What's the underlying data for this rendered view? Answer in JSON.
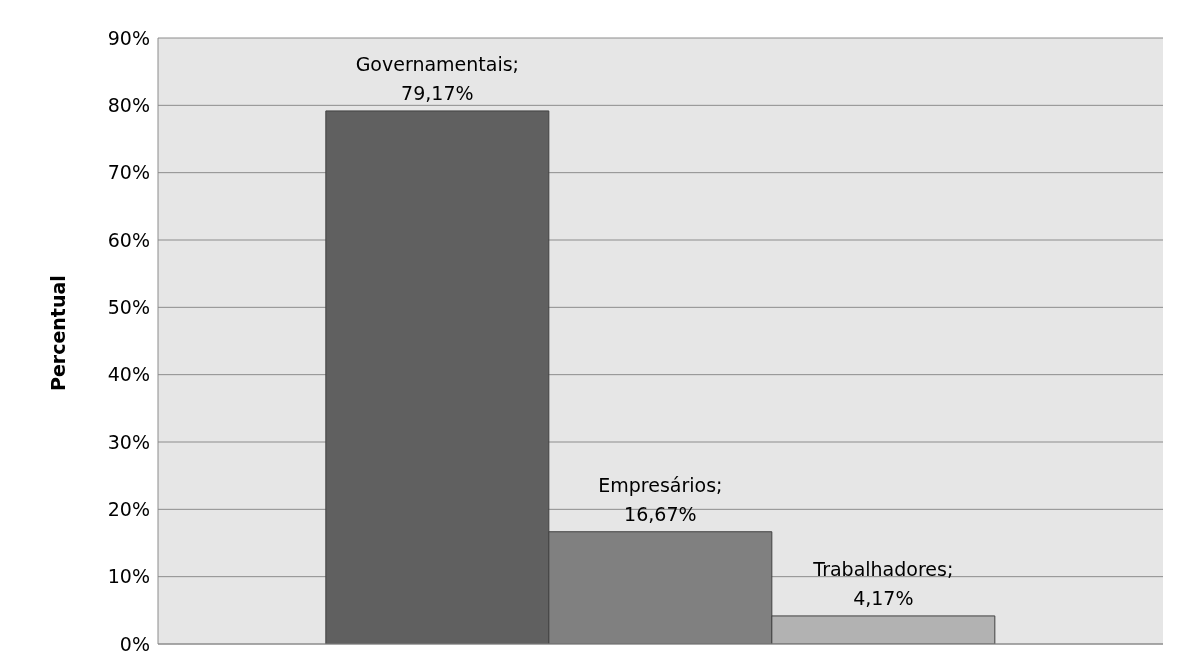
{
  "chart_data": {
    "type": "bar",
    "ylabel": "Percentual",
    "categories": [
      null
    ],
    "series": [
      {
        "name": "Governamentais;",
        "color": "#606060",
        "values": [
          79.17
        ],
        "value_labels": [
          "79,17%"
        ]
      },
      {
        "name": "Empresários;",
        "color": "#808080",
        "values": [
          16.67
        ],
        "value_labels": [
          "16,67%"
        ]
      },
      {
        "name": "Trabalhadores;",
        "color": "#b2b2b2",
        "values": [
          4.17
        ],
        "value_labels": [
          "4,17%"
        ]
      }
    ],
    "ylim": [
      0,
      90
    ],
    "yticks": [
      {
        "value": 0,
        "label": "0%"
      },
      {
        "value": 10,
        "label": "10%"
      },
      {
        "value": 20,
        "label": "20%"
      },
      {
        "value": 30,
        "label": "30%"
      },
      {
        "value": 40,
        "label": "40%"
      },
      {
        "value": 50,
        "label": "50%"
      },
      {
        "value": 60,
        "label": "60%"
      },
      {
        "value": 70,
        "label": "70%"
      },
      {
        "value": 80,
        "label": "80%"
      },
      {
        "value": 90,
        "label": "90%"
      }
    ],
    "grid": "y",
    "legend": false,
    "tick_labels": "y"
  }
}
